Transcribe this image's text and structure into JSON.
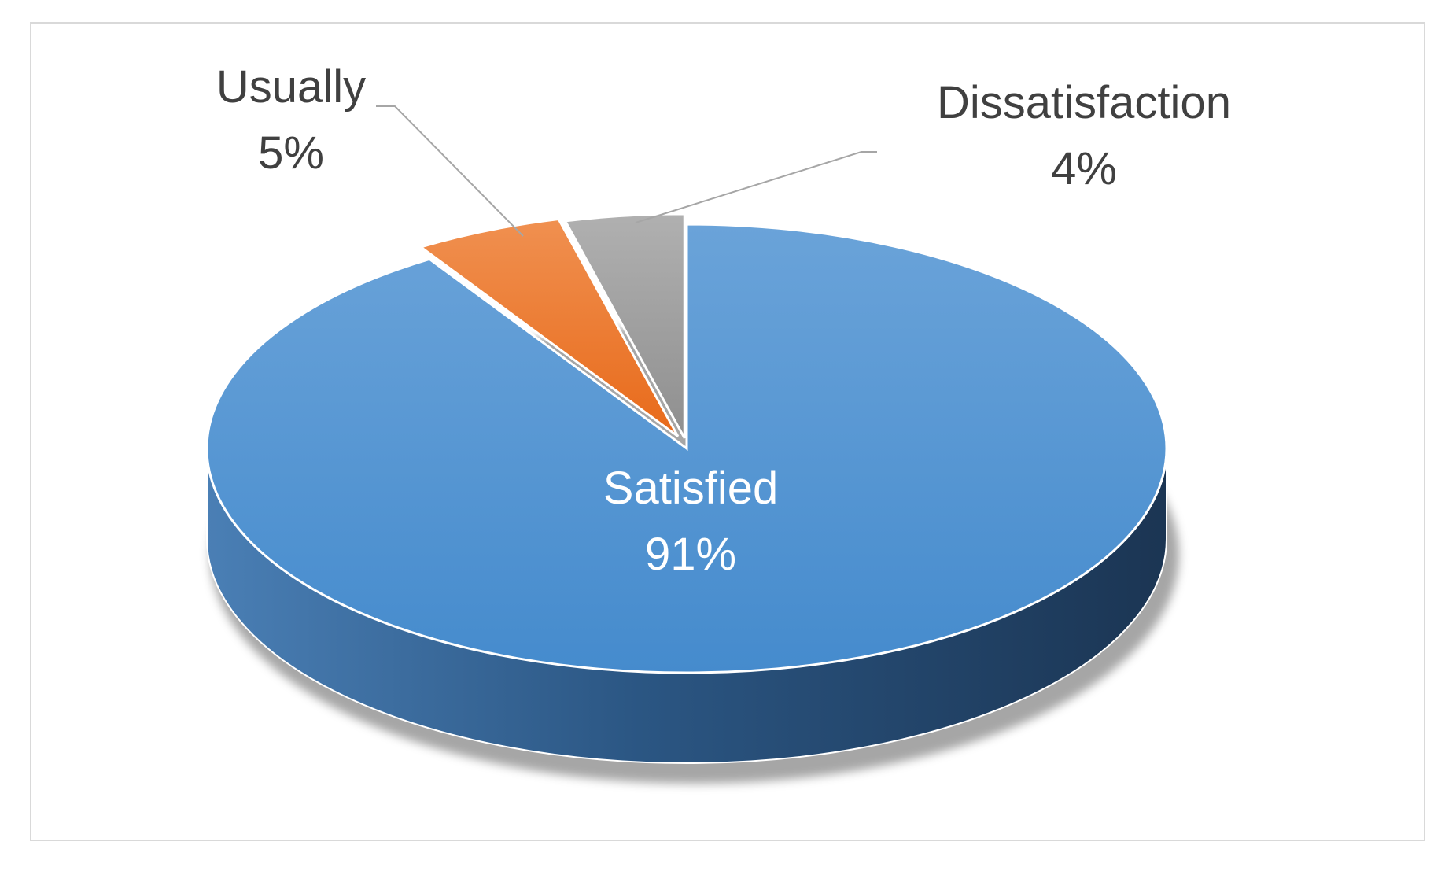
{
  "chart_data": {
    "type": "pie",
    "variant": "3d-exploded",
    "title": "",
    "slices": [
      {
        "label": "Satisfied",
        "value": 91,
        "display": "91%",
        "color": "#5b9bd5",
        "side_color": "#2f5f8f",
        "text_color": "#ffffff"
      },
      {
        "label": "Usually",
        "value": 5,
        "display": "5%",
        "color": "#ed7d31",
        "side_color": "#a8561f",
        "text_color": "#404040"
      },
      {
        "label": "Dissatisfaction",
        "value": 4,
        "display": "4%",
        "color": "#a5a5a5",
        "side_color": "#6e6e6e",
        "text_color": "#404040"
      }
    ],
    "legend": "none",
    "data_labels": "category-and-percent"
  }
}
